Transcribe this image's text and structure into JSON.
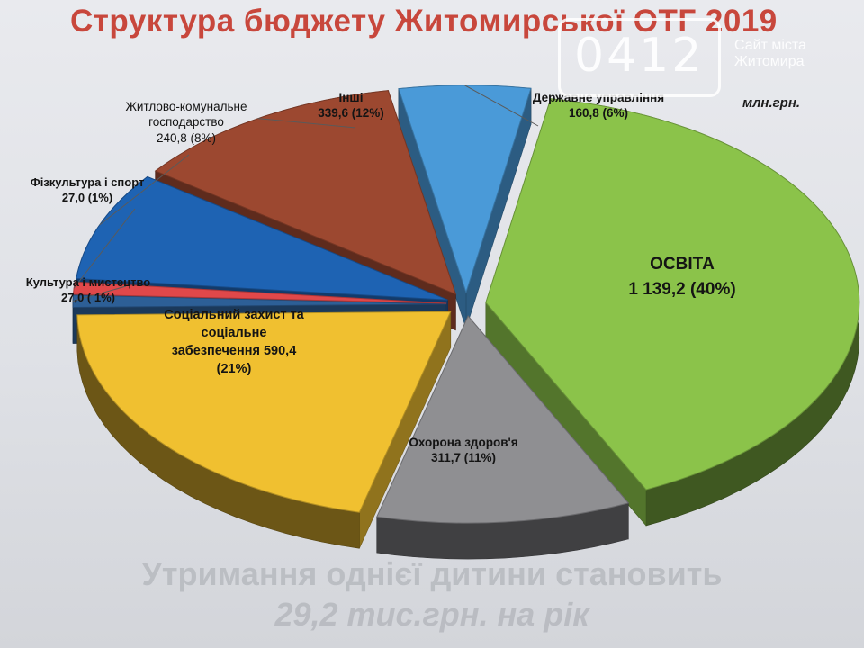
{
  "chart_data": {
    "type": "pie",
    "title": "Структура бюджету Житомирської ОТГ 2019",
    "unit": "млн.грн.",
    "slices": [
      {
        "name": "Освіта",
        "value": 1139.2,
        "percent": 40,
        "color": "#8bc34a",
        "label_lines": [
          "ОСВІТА",
          "1 139,2 (40%)"
        ]
      },
      {
        "name": "Охорона здоров'я",
        "value": 311.7,
        "percent": 11,
        "color": "#8f8f92",
        "label_lines": [
          "Охорона здоров'я",
          "311,7 (11%)"
        ]
      },
      {
        "name": "Соціальний захист та соціальне забезпечення",
        "value": 590.4,
        "percent": 21,
        "color": "#f0c030",
        "label_lines": [
          "Соціальний захист та",
          "соціальне",
          "забезпечення  590,4",
          "(21%)"
        ]
      },
      {
        "name": "Культура і мистецтво",
        "value": 27.0,
        "percent": 1,
        "color": "#2d5f96",
        "label_lines": [
          "Культура і мистецтво",
          "27,0 ( 1%)"
        ]
      },
      {
        "name": "Фізкультура і спорт",
        "value": 27.0,
        "percent": 1,
        "color": "#e0484a",
        "label_lines": [
          "Фізкультура і спорт",
          "27,0 (1%)"
        ]
      },
      {
        "name": "Житлово-комунальне господарство",
        "value": 240.8,
        "percent": 8,
        "color": "#1e63b3",
        "label_lines": [
          "Житлово-комунальне",
          "господарство",
          "240,8 (8%)"
        ]
      },
      {
        "name": "Інші",
        "value": 339.6,
        "percent": 12,
        "color": "#9c4830",
        "label_lines": [
          "Інші",
          "339,6 (12%)"
        ]
      },
      {
        "name": "Державне управління",
        "value": 160.8,
        "percent": 6,
        "color": "#4a9ad8",
        "label_lines": [
          "Державне управління",
          "160,8 (6%)"
        ]
      }
    ]
  },
  "watermark": {
    "number": "0412",
    "site_line1": "Сайт міста",
    "site_line2": "Житомира"
  },
  "background_text": {
    "line1": "Утримання однієї дитини становить",
    "line2": "29,2 тис.грн. на рік"
  }
}
